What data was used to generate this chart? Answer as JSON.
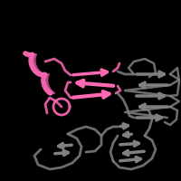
{
  "background_color": "#000000",
  "figure_size": [
    2.0,
    2.0
  ],
  "dpi": 100,
  "gray_color": "#808080",
  "pink_color": "#FF69B4",
  "dark_gray": "#696969",
  "light_gray": "#A0A0A0"
}
